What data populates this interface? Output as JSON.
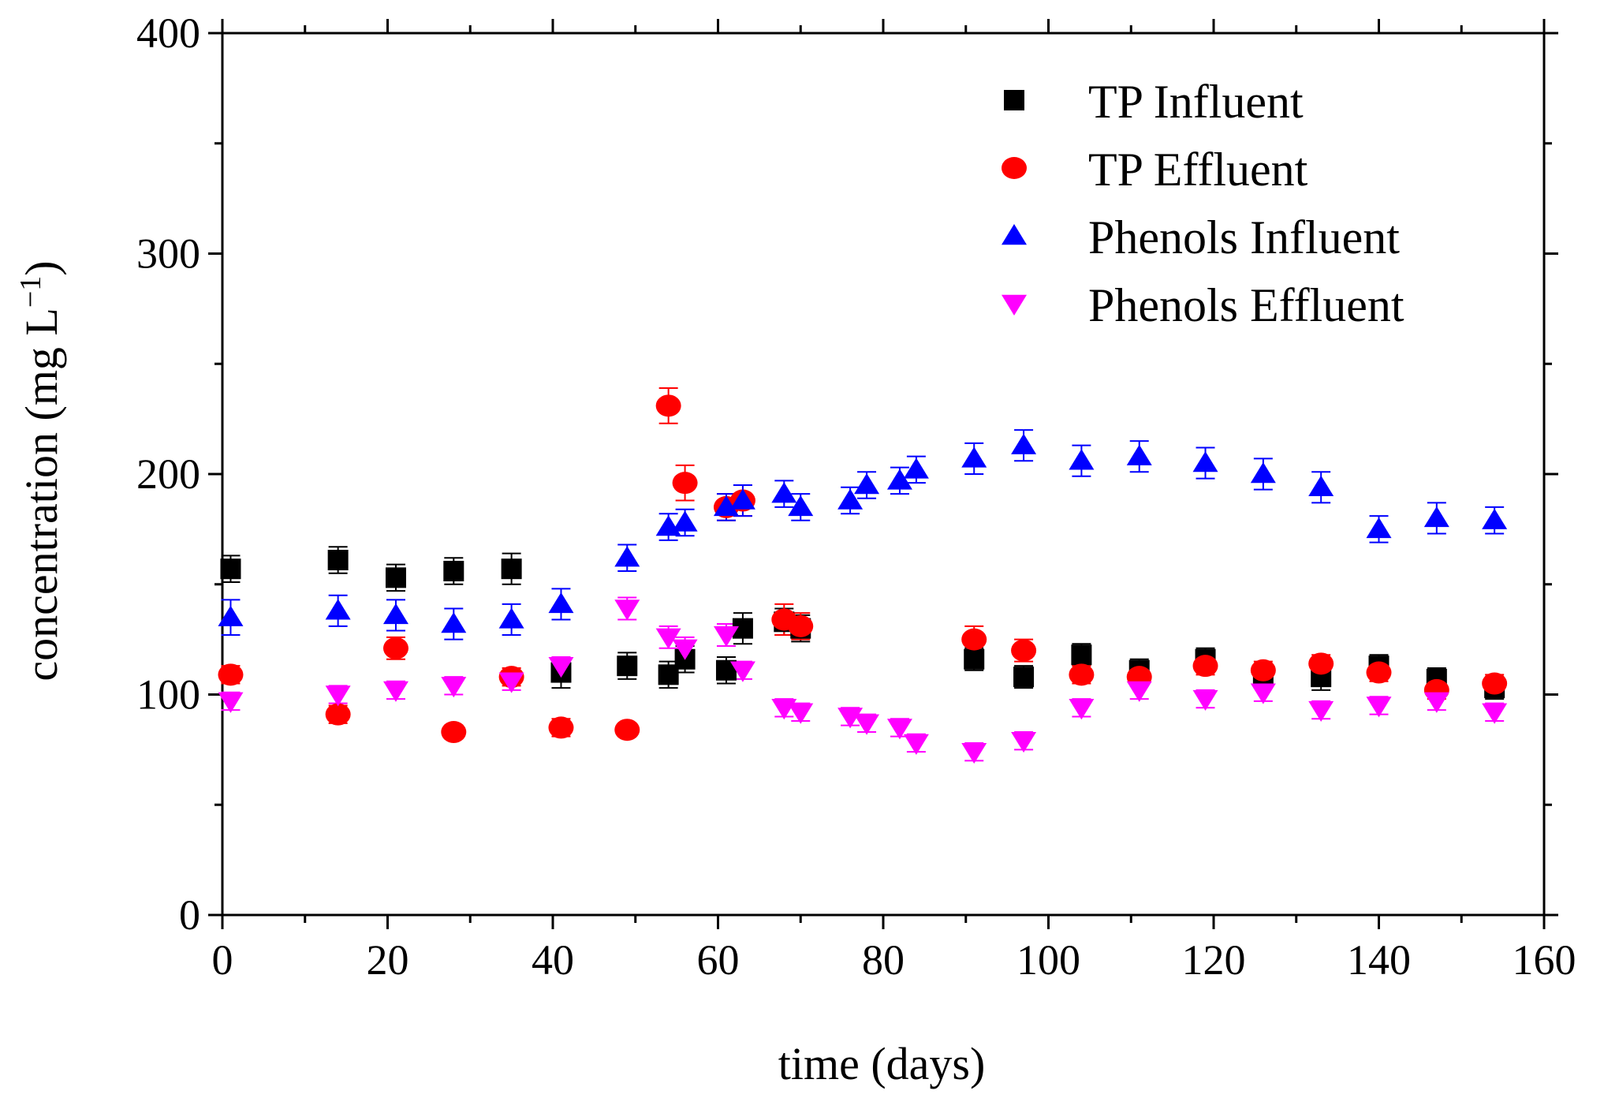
{
  "chart_data": {
    "type": "scatter",
    "title": "",
    "xlabel": "time (days)",
    "ylabel_main": "concentration (mg L",
    "ylabel_sup": "−1",
    "ylabel_close": ")",
    "xlim": [
      0,
      160
    ],
    "ylim": [
      0,
      400
    ],
    "xticks": [
      0,
      20,
      40,
      60,
      80,
      100,
      120,
      140,
      160
    ],
    "yticks": [
      0,
      100,
      200,
      300,
      400
    ],
    "x_minor_step": 10,
    "y_minor_step": 50,
    "grid": false,
    "legend_position": "top-right",
    "series": [
      {
        "name": "TP Influent",
        "marker": "square",
        "color": "#000000",
        "x": [
          1,
          14,
          21,
          28,
          35,
          41,
          49,
          54,
          56,
          61,
          63,
          68,
          70,
          91,
          97,
          104,
          111,
          119,
          126,
          133,
          140,
          147,
          154
        ],
        "y": [
          157,
          161,
          153,
          156,
          157,
          110,
          113,
          109,
          116,
          111,
          130,
          133,
          130,
          116,
          108,
          118,
          111,
          116,
          108,
          108,
          113,
          107,
          103
        ],
        "err": [
          6,
          6,
          6,
          6,
          7,
          7,
          6,
          6,
          6,
          6,
          7,
          6,
          6,
          5,
          5,
          5,
          5,
          5,
          5,
          6,
          5,
          5,
          5
        ]
      },
      {
        "name": "TP Effluent",
        "marker": "circle",
        "color": "#ff0000",
        "x": [
          1,
          14,
          21,
          28,
          35,
          41,
          49,
          54,
          56,
          61,
          63,
          68,
          70,
          91,
          97,
          104,
          111,
          119,
          126,
          133,
          140,
          147,
          154
        ],
        "y": [
          109,
          91,
          121,
          83,
          108,
          85,
          84,
          231,
          196,
          185,
          188,
          134,
          131,
          125,
          120,
          109,
          108,
          113,
          111,
          114,
          110,
          102,
          105
        ],
        "err": [
          4,
          4,
          5,
          3,
          4,
          4,
          3,
          8,
          8,
          6,
          7,
          7,
          6,
          6,
          5,
          4,
          4,
          4,
          4,
          4,
          4,
          4,
          4
        ]
      },
      {
        "name": "Phenols Influent",
        "marker": "triangle-up",
        "color": "#0000ff",
        "x": [
          1,
          14,
          21,
          28,
          35,
          41,
          49,
          54,
          56,
          61,
          63,
          68,
          70,
          76,
          78,
          82,
          84,
          91,
          97,
          104,
          111,
          119,
          126,
          133,
          140,
          147,
          154
        ],
        "y": [
          135,
          138,
          136,
          132,
          134,
          141,
          162,
          176,
          178,
          185,
          188,
          191,
          185,
          188,
          195,
          197,
          202,
          207,
          213,
          206,
          208,
          205,
          200,
          194,
          175,
          180,
          179
        ],
        "err": [
          8,
          7,
          7,
          7,
          7,
          7,
          6,
          6,
          6,
          6,
          7,
          6,
          6,
          6,
          6,
          6,
          6,
          7,
          7,
          7,
          7,
          7,
          7,
          7,
          6,
          7,
          6
        ]
      },
      {
        "name": "Phenols Effluent",
        "marker": "triangle-down",
        "color": "#ff00ff",
        "x": [
          1,
          14,
          21,
          28,
          35,
          41,
          49,
          54,
          56,
          61,
          63,
          68,
          70,
          76,
          78,
          82,
          84,
          91,
          97,
          104,
          111,
          119,
          126,
          133,
          140,
          147,
          154
        ],
        "y": [
          97,
          100,
          102,
          104,
          106,
          113,
          139,
          126,
          121,
          127,
          111,
          94,
          92,
          90,
          87,
          85,
          78,
          74,
          79,
          94,
          102,
          98,
          101,
          93,
          95,
          97,
          92
        ],
        "err": [
          4,
          4,
          4,
          4,
          4,
          4,
          5,
          5,
          5,
          5,
          4,
          4,
          4,
          4,
          4,
          4,
          4,
          4,
          4,
          4,
          4,
          4,
          4,
          4,
          4,
          4,
          4
        ]
      }
    ]
  }
}
